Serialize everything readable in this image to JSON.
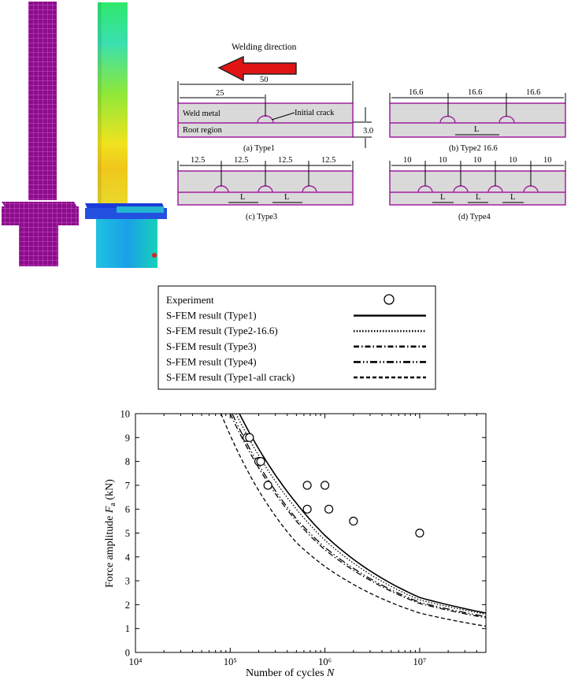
{
  "crack_diagram": {
    "welding_direction": "Welding direction",
    "type1": {
      "caption": "(a) Type1",
      "dim_total": "50",
      "dim_part": "25",
      "weld_metal": "Weld metal",
      "root_region": "Root region",
      "initial_crack": "Initial crack",
      "thickness": "3.0"
    },
    "type2": {
      "caption": "(b) Type2 16.6",
      "dims": [
        "16.6",
        "16.6",
        "16.6"
      ],
      "gap": "L"
    },
    "type3": {
      "caption": "(c) Type3",
      "dims": [
        "12.5",
        "12.5",
        "12.5",
        "12.5"
      ],
      "gap": "L"
    },
    "type4": {
      "caption": "(d) Type4",
      "dims": [
        "10",
        "10",
        "10",
        "10",
        "10"
      ],
      "gap": "L"
    }
  },
  "legend": {
    "entries": [
      {
        "label": "Experiment",
        "style": "marker"
      },
      {
        "label": "S-FEM result (Type1)",
        "style": "solid"
      },
      {
        "label": "S-FEM result (Type2-16.6)",
        "style": "dotted"
      },
      {
        "label": "S-FEM result (Type3)",
        "style": "dashdot"
      },
      {
        "label": "S-FEM result (Type4)",
        "style": "dashdotdot"
      },
      {
        "label": "S-FEM result (Type1-all crack)",
        "style": "dashed"
      }
    ]
  },
  "chart_data": {
    "type": "scatter",
    "xlabel": "Number of cycles N",
    "ylabel": "Force amplitude Fa (kN)",
    "x_scale": "log",
    "xlim": [
      10000,
      50000000
    ],
    "ylim": [
      0,
      10
    ],
    "x_tick_labels": [
      "10⁴",
      "10⁵",
      "10⁶",
      "10⁷"
    ],
    "y_tick_labels": [
      "0",
      "1",
      "2",
      "3",
      "4",
      "5",
      "6",
      "7",
      "8",
      "9",
      "10"
    ],
    "grid": false,
    "series": [
      {
        "name": "Experiment",
        "kind": "markers",
        "points": [
          [
            150000,
            9
          ],
          [
            160000,
            9
          ],
          [
            200000,
            8
          ],
          [
            210000,
            8
          ],
          [
            250000,
            7
          ],
          [
            650000,
            7
          ],
          [
            1000000,
            7
          ],
          [
            650000,
            6
          ],
          [
            1100000,
            6
          ],
          [
            2000000,
            5.5
          ],
          [
            10000000,
            5
          ]
        ]
      },
      {
        "name": "S-FEM result (Type1)",
        "kind": "curve",
        "points": [
          [
            125000,
            10
          ],
          [
            500000,
            6.25
          ],
          [
            1000000,
            4.9
          ],
          [
            10000000,
            2.3
          ],
          [
            50000000,
            1.65
          ]
        ]
      },
      {
        "name": "S-FEM result (Type2-16.6)",
        "kind": "curve",
        "points": [
          [
            115000,
            10
          ],
          [
            500000,
            6
          ],
          [
            1000000,
            4.7
          ],
          [
            10000000,
            2.2
          ],
          [
            50000000,
            1.6
          ]
        ]
      },
      {
        "name": "S-FEM result (Type3)",
        "kind": "curve",
        "points": [
          [
            100000,
            10
          ],
          [
            500000,
            5.5
          ],
          [
            1000000,
            4.3
          ],
          [
            10000000,
            2.05
          ],
          [
            50000000,
            1.45
          ]
        ]
      },
      {
        "name": "S-FEM result (Type4)",
        "kind": "curve",
        "points": [
          [
            105000,
            10
          ],
          [
            500000,
            5.6
          ],
          [
            1000000,
            4.4
          ],
          [
            10000000,
            2.1
          ],
          [
            50000000,
            1.5
          ]
        ]
      },
      {
        "name": "S-FEM result (Type1-all crack)",
        "kind": "curve",
        "points": [
          [
            80000,
            10
          ],
          [
            500000,
            4.6
          ],
          [
            1000000,
            3.6
          ],
          [
            10000000,
            1.65
          ],
          [
            50000000,
            1.1
          ]
        ]
      }
    ]
  }
}
